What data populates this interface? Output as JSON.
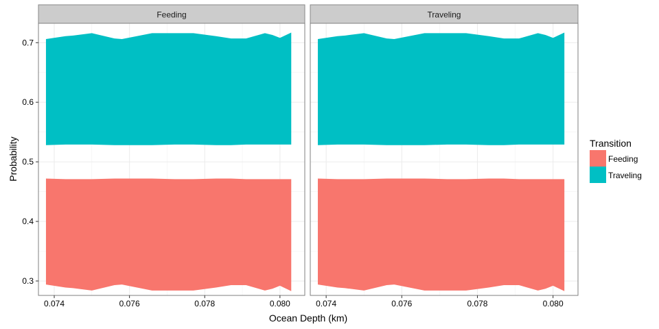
{
  "chart_data": {
    "type": "area",
    "subtype": "ribbon",
    "xlabel": "Ocean Depth (km)",
    "ylabel": "Probability",
    "xlim": [
      0.07358,
      0.08066
    ],
    "ylim": [
      0.2758,
      0.7325
    ],
    "x_ticks": [
      "0.074",
      "0.076",
      "0.078",
      "0.080"
    ],
    "x_tick_values": [
      0.074,
      0.076,
      0.078,
      0.08
    ],
    "y_ticks": [
      "0.3",
      "0.4",
      "0.5",
      "0.6",
      "0.7"
    ],
    "y_tick_values": [
      0.3,
      0.4,
      0.5,
      0.6,
      0.7
    ],
    "grid": true,
    "legend_position": "right",
    "legend": {
      "title": "Transition",
      "entries": [
        {
          "label": "Feeding",
          "color": "#F8766D"
        },
        {
          "label": "Traveling",
          "color": "#00BFC4"
        }
      ]
    },
    "panels": [
      {
        "label": "Feeding",
        "series": [
          {
            "name": "Traveling",
            "color": "#00BFC4",
            "x": [
              0.07378,
              0.0743,
              0.0745,
              0.075,
              0.0756,
              0.0758,
              0.0766,
              0.0772,
              0.0777,
              0.0783,
              0.0787,
              0.0791,
              0.0796,
              0.0798,
              0.08,
              0.0803
            ],
            "lower": [
              0.528,
              0.529,
              0.529,
              0.529,
              0.528,
              0.528,
              0.528,
              0.529,
              0.529,
              0.528,
              0.528,
              0.529,
              0.529,
              0.529,
              0.529,
              0.529
            ],
            "upper": [
              0.706,
              0.711,
              0.712,
              0.716,
              0.707,
              0.706,
              0.716,
              0.716,
              0.716,
              0.711,
              0.707,
              0.707,
              0.716,
              0.713,
              0.708,
              0.717
            ]
          },
          {
            "name": "Feeding",
            "color": "#F8766D",
            "x": [
              0.07378,
              0.0743,
              0.0745,
              0.075,
              0.0756,
              0.0758,
              0.0766,
              0.0772,
              0.0777,
              0.0783,
              0.0787,
              0.0791,
              0.0796,
              0.0798,
              0.08,
              0.0803
            ],
            "lower": [
              0.294,
              0.289,
              0.288,
              0.284,
              0.293,
              0.294,
              0.284,
              0.284,
              0.284,
              0.289,
              0.293,
              0.293,
              0.284,
              0.287,
              0.292,
              0.283
            ],
            "upper": [
              0.472,
              0.471,
              0.471,
              0.471,
              0.472,
              0.472,
              0.472,
              0.471,
              0.471,
              0.472,
              0.472,
              0.471,
              0.471,
              0.471,
              0.471,
              0.471
            ]
          }
        ]
      },
      {
        "label": "Traveling",
        "series": [
          {
            "name": "Traveling",
            "color": "#00BFC4",
            "x": [
              0.07378,
              0.0743,
              0.0745,
              0.075,
              0.0756,
              0.0758,
              0.0766,
              0.0772,
              0.0777,
              0.0783,
              0.0787,
              0.0791,
              0.0796,
              0.0798,
              0.08,
              0.0803
            ],
            "lower": [
              0.528,
              0.529,
              0.529,
              0.529,
              0.528,
              0.528,
              0.528,
              0.529,
              0.529,
              0.528,
              0.528,
              0.529,
              0.529,
              0.529,
              0.529,
              0.529
            ],
            "upper": [
              0.706,
              0.711,
              0.712,
              0.716,
              0.707,
              0.706,
              0.716,
              0.716,
              0.716,
              0.711,
              0.707,
              0.707,
              0.716,
              0.713,
              0.708,
              0.717
            ]
          },
          {
            "name": "Feeding",
            "color": "#F8766D",
            "x": [
              0.07378,
              0.0743,
              0.0745,
              0.075,
              0.0756,
              0.0758,
              0.0766,
              0.0772,
              0.0777,
              0.0783,
              0.0787,
              0.0791,
              0.0796,
              0.0798,
              0.08,
              0.0803
            ],
            "lower": [
              0.294,
              0.289,
              0.288,
              0.284,
              0.293,
              0.294,
              0.284,
              0.284,
              0.284,
              0.289,
              0.293,
              0.293,
              0.284,
              0.287,
              0.292,
              0.283
            ],
            "upper": [
              0.472,
              0.471,
              0.471,
              0.471,
              0.472,
              0.472,
              0.472,
              0.471,
              0.471,
              0.472,
              0.472,
              0.471,
              0.471,
              0.471,
              0.471,
              0.471
            ]
          }
        ]
      }
    ]
  }
}
